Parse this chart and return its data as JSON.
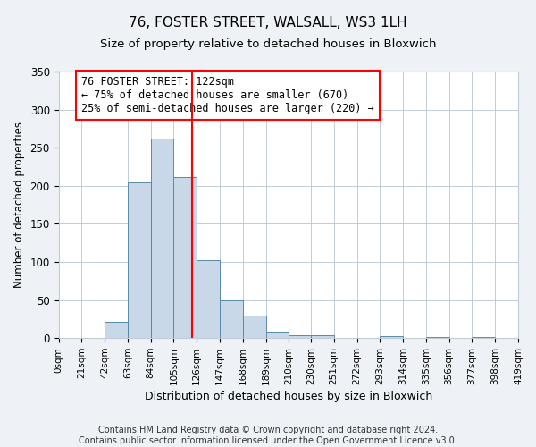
{
  "title": "76, FOSTER STREET, WALSALL, WS3 1LH",
  "subtitle": "Size of property relative to detached houses in Bloxwich",
  "xlabel": "Distribution of detached houses by size in Bloxwich",
  "ylabel": "Number of detached properties",
  "bin_edges": [
    0,
    21,
    42,
    63,
    84,
    105,
    126,
    147,
    168,
    189,
    210,
    230,
    251,
    272,
    293,
    314,
    335,
    356,
    377,
    398,
    419
  ],
  "bin_counts": [
    0,
    0,
    21,
    204,
    262,
    212,
    102,
    50,
    29,
    9,
    4,
    4,
    0,
    0,
    3,
    0,
    2,
    0,
    1,
    0
  ],
  "bar_color": "#c8d8e8",
  "bar_edge_color": "#5a8aaa",
  "property_line_x": 122,
  "property_line_color": "red",
  "annotation_line1": "76 FOSTER STREET: 122sqm",
  "annotation_line2": "← 75% of detached houses are smaller (670)",
  "annotation_line3": "25% of semi-detached houses are larger (220) →",
  "annotation_box_color": "white",
  "annotation_box_edge_color": "red",
  "ylim": [
    0,
    350
  ],
  "yticks": [
    0,
    50,
    100,
    150,
    200,
    250,
    300,
    350
  ],
  "tick_labels": [
    "0sqm",
    "21sqm",
    "42sqm",
    "63sqm",
    "84sqm",
    "105sqm",
    "126sqm",
    "147sqm",
    "168sqm",
    "189sqm",
    "210sqm",
    "230sqm",
    "251sqm",
    "272sqm",
    "293sqm",
    "314sqm",
    "335sqm",
    "356sqm",
    "377sqm",
    "398sqm",
    "419sqm"
  ],
  "footer_line1": "Contains HM Land Registry data © Crown copyright and database right 2024.",
  "footer_line2": "Contains public sector information licensed under the Open Government Licence v3.0.",
  "background_color": "#eef2f6",
  "plot_bg_color": "#ffffff",
  "grid_color": "#c0ccd8",
  "title_fontsize": 11,
  "subtitle_fontsize": 9.5,
  "annotation_fontsize": 8.5,
  "footer_fontsize": 7,
  "ylabel_fontsize": 8.5,
  "xlabel_fontsize": 9,
  "tick_fontsize": 7.5,
  "ytick_fontsize": 8.5
}
